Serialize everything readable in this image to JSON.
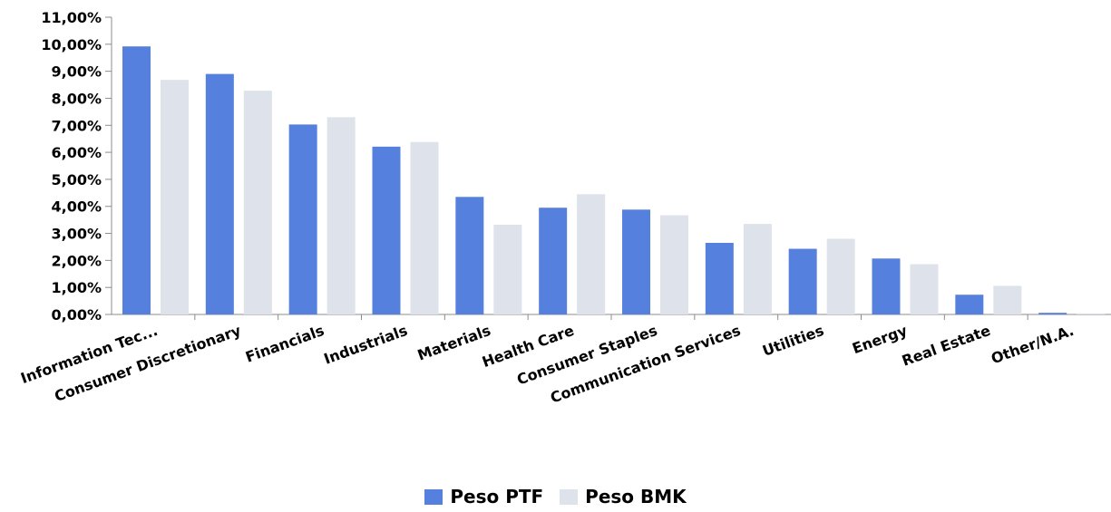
{
  "chart_data": {
    "type": "bar",
    "categories": [
      "Information Tec...",
      "Consumer Discretionary",
      "Financials",
      "Industrials",
      "Materials",
      "Health Care",
      "Consumer Staples",
      "Communication Services",
      "Utilities",
      "Energy",
      "Real Estate",
      "Other/N.A."
    ],
    "series": [
      {
        "name": "Peso PTF",
        "color": "#5580dd",
        "values": [
          9.92,
          8.9,
          7.03,
          6.21,
          4.35,
          3.95,
          3.88,
          2.65,
          2.43,
          2.07,
          0.73,
          0.06
        ]
      },
      {
        "name": "Peso BMK",
        "color": "#dee2ea",
        "values": [
          8.68,
          8.28,
          7.3,
          6.38,
          3.32,
          4.45,
          3.67,
          3.35,
          2.8,
          1.86,
          1.06,
          0.04
        ]
      }
    ],
    "ylim": [
      0,
      11
    ],
    "yticks": [
      "0,00%",
      "1,00%",
      "2,00%",
      "3,00%",
      "4,00%",
      "5,00%",
      "6,00%",
      "7,00%",
      "8,00%",
      "9,00%",
      "10,00%",
      "11,00%"
    ],
    "legend_position": "bottom-center",
    "grid": false
  }
}
